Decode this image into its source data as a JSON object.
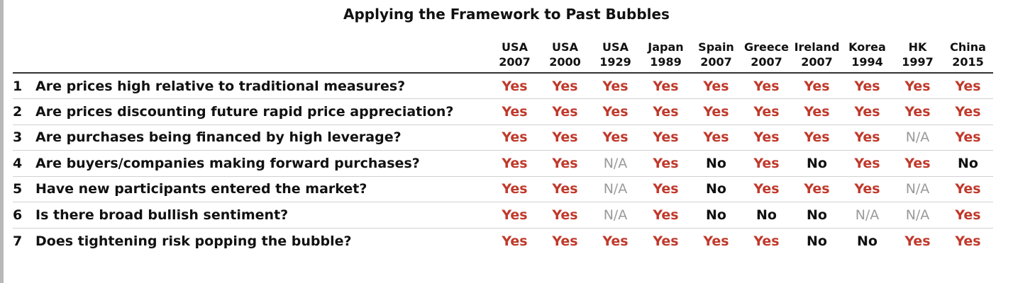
{
  "title": "Applying the Framework to Past Bubbles",
  "colors": {
    "yes": "#c0392b",
    "no": "#111111",
    "na": "#9a9a9a"
  },
  "columns": [
    {
      "name": "USA",
      "year": "2007"
    },
    {
      "name": "USA",
      "year": "2000"
    },
    {
      "name": "USA",
      "year": "1929"
    },
    {
      "name": "Japan",
      "year": "1989"
    },
    {
      "name": "Spain",
      "year": "2007"
    },
    {
      "name": "Greece",
      "year": "2007"
    },
    {
      "name": "Ireland",
      "year": "2007"
    },
    {
      "name": "Korea",
      "year": "1994"
    },
    {
      "name": "HK",
      "year": "1997"
    },
    {
      "name": "China",
      "year": "2015"
    }
  ],
  "rows": [
    {
      "num": "1",
      "question": "Are prices high relative to traditional measures?",
      "values": [
        "Yes",
        "Yes",
        "Yes",
        "Yes",
        "Yes",
        "Yes",
        "Yes",
        "Yes",
        "Yes",
        "Yes"
      ]
    },
    {
      "num": "2",
      "question": "Are prices discounting future rapid price appreciation?",
      "values": [
        "Yes",
        "Yes",
        "Yes",
        "Yes",
        "Yes",
        "Yes",
        "Yes",
        "Yes",
        "Yes",
        "Yes"
      ]
    },
    {
      "num": "3",
      "question": "Are purchases being financed by high leverage?",
      "values": [
        "Yes",
        "Yes",
        "Yes",
        "Yes",
        "Yes",
        "Yes",
        "Yes",
        "Yes",
        "N/A",
        "Yes"
      ]
    },
    {
      "num": "4",
      "question": "Are buyers/companies making forward purchases?",
      "values": [
        "Yes",
        "Yes",
        "N/A",
        "Yes",
        "No",
        "Yes",
        "No",
        "Yes",
        "Yes",
        "No"
      ]
    },
    {
      "num": "5",
      "question": "Have new participants entered the market?",
      "values": [
        "Yes",
        "Yes",
        "N/A",
        "Yes",
        "No",
        "Yes",
        "Yes",
        "Yes",
        "N/A",
        "Yes"
      ]
    },
    {
      "num": "6",
      "question": "Is there broad bullish sentiment?",
      "values": [
        "Yes",
        "Yes",
        "N/A",
        "Yes",
        "No",
        "No",
        "No",
        "N/A",
        "N/A",
        "Yes"
      ]
    },
    {
      "num": "7",
      "question": "Does tightening risk popping the bubble?",
      "values": [
        "Yes",
        "Yes",
        "Yes",
        "Yes",
        "Yes",
        "Yes",
        "No",
        "No",
        "Yes",
        "Yes"
      ]
    }
  ]
}
